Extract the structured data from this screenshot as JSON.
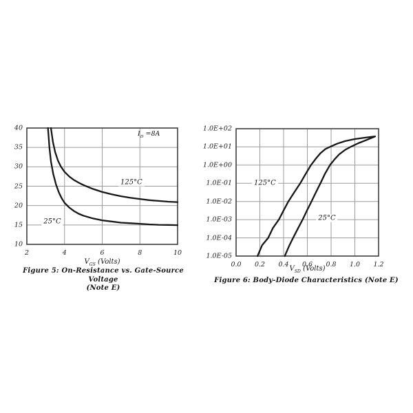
{
  "page": {
    "background": "#ffffff"
  },
  "chart_data": [
    {
      "id": "figure5",
      "type": "line",
      "title": "Figure 5: On-Resistance vs. Gate-Source Voltage",
      "title_line2": "(Note E)",
      "xlabel": {
        "symbol": "V",
        "subscript": "GS",
        "unit": " (Volts)"
      },
      "x_scale": "linear",
      "y_scale": "linear",
      "xlim": [
        2,
        10
      ],
      "ylim": [
        10,
        40
      ],
      "grid": true,
      "legend_position": "none",
      "x_ticks": [
        {
          "v": 2,
          "label": "2"
        },
        {
          "v": 4,
          "label": "4"
        },
        {
          "v": 6,
          "label": "6"
        },
        {
          "v": 8,
          "label": "8"
        },
        {
          "v": 10,
          "label": "10"
        }
      ],
      "y_ticks": [
        {
          "v": 40,
          "label": "40"
        },
        {
          "v": 35,
          "label": "35"
        },
        {
          "v": 30,
          "label": "30"
        },
        {
          "v": 25,
          "label": "25"
        },
        {
          "v": 20,
          "label": "20"
        },
        {
          "v": 15,
          "label": "15"
        },
        {
          "v": 10,
          "label": "10"
        }
      ],
      "annotation": {
        "symbol": "I",
        "subscript": "D",
        "value": " =8A"
      },
      "series": [
        {
          "name": "125°C",
          "label_at": [
            7.55,
            26.0
          ],
          "points": [
            [
              3.28,
              40
            ],
            [
              3.38,
              36.5
            ],
            [
              3.5,
              33.8
            ],
            [
              3.65,
              31.6
            ],
            [
              3.8,
              30.1
            ],
            [
              4.0,
              28.7
            ],
            [
              4.25,
              27.5
            ],
            [
              4.5,
              26.6
            ],
            [
              4.75,
              25.9
            ],
            [
              5.0,
              25.3
            ],
            [
              5.5,
              24.3
            ],
            [
              6.0,
              23.5
            ],
            [
              6.5,
              22.9
            ],
            [
              7.0,
              22.4
            ],
            [
              7.5,
              22.0
            ],
            [
              8.0,
              21.7
            ],
            [
              8.5,
              21.4
            ],
            [
              9.0,
              21.2
            ],
            [
              9.5,
              21.0
            ],
            [
              10.0,
              20.9
            ]
          ]
        },
        {
          "name": "25°C",
          "label_at": [
            3.35,
            15.9
          ],
          "points": [
            [
              3.12,
              40
            ],
            [
              3.2,
              35
            ],
            [
              3.28,
              31.4
            ],
            [
              3.4,
              28.2
            ],
            [
              3.55,
              25.4
            ],
            [
              3.7,
              23.4
            ],
            [
              3.85,
              21.9
            ],
            [
              4.0,
              20.7
            ],
            [
              4.25,
              19.5
            ],
            [
              4.5,
              18.6
            ],
            [
              4.75,
              17.9
            ],
            [
              5.0,
              17.4
            ],
            [
              5.5,
              16.7
            ],
            [
              6.0,
              16.2
            ],
            [
              6.5,
              15.9
            ],
            [
              7.0,
              15.6
            ],
            [
              7.5,
              15.45
            ],
            [
              8.0,
              15.3
            ],
            [
              8.5,
              15.15
            ],
            [
              9.0,
              15.05
            ],
            [
              9.5,
              15.0
            ],
            [
              10.0,
              14.95
            ]
          ]
        }
      ],
      "colors": {
        "curve": "#161616",
        "grid": "#9b9b9b",
        "frame": "#3c3c3c"
      }
    },
    {
      "id": "figure6",
      "type": "line",
      "title": "Figure 6: Body-Diode Characteristics (Note E)",
      "xlabel": {
        "symbol": "V",
        "subscript": "SD",
        "unit": " (Volts)"
      },
      "x_scale": "linear",
      "y_scale": "log",
      "xlim": [
        0,
        1.2
      ],
      "ylim": [
        1e-05,
        100
      ],
      "grid": true,
      "legend_position": "none",
      "x_ticks": [
        {
          "v": 0.0,
          "label": "0.0"
        },
        {
          "v": 0.2,
          "label": "0.2"
        },
        {
          "v": 0.4,
          "label": "0.4"
        },
        {
          "v": 0.6,
          "label": "0.6"
        },
        {
          "v": 0.8,
          "label": "0.8"
        },
        {
          "v": 1.0,
          "label": "1.0"
        },
        {
          "v": 1.2,
          "label": "1.2"
        }
      ],
      "y_ticks": [
        {
          "v": 100,
          "label": "1.0E+02"
        },
        {
          "v": 10,
          "label": "1.0E+01"
        },
        {
          "v": 1,
          "label": "1.0E+00"
        },
        {
          "v": 0.1,
          "label": "1.0E-01"
        },
        {
          "v": 0.01,
          "label": "1.0E-02"
        },
        {
          "v": 0.001,
          "label": "1.0E-03"
        },
        {
          "v": 0.0001,
          "label": "1.0E-04"
        },
        {
          "v": 1e-05,
          "label": "1.0E-05"
        }
      ],
      "series": [
        {
          "name": "125°C",
          "label_at": [
            0.243,
            0.102
          ],
          "points": [
            [
              0.18,
              1e-05
            ],
            [
              0.22,
              4e-05
            ],
            [
              0.27,
              0.0001
            ],
            [
              0.31,
              0.00035
            ],
            [
              0.36,
              0.001
            ],
            [
              0.4,
              0.0032
            ],
            [
              0.44,
              0.01
            ],
            [
              0.49,
              0.032
            ],
            [
              0.54,
              0.1
            ],
            [
              0.585,
              0.32
            ],
            [
              0.63,
              1
            ],
            [
              0.67,
              2.2
            ],
            [
              0.71,
              4.5
            ],
            [
              0.75,
              7.5
            ],
            [
              0.79,
              10
            ],
            [
              0.85,
              15
            ],
            [
              0.92,
              21
            ],
            [
              1.0,
              27
            ],
            [
              1.08,
              32
            ],
            [
              1.17,
              38
            ]
          ]
        },
        {
          "name": "25°C",
          "label_at": [
            0.765,
            0.0012
          ],
          "points": [
            [
              0.41,
              1e-05
            ],
            [
              0.45,
              4e-05
            ],
            [
              0.48,
              0.0001
            ],
            [
              0.52,
              0.00032
            ],
            [
              0.56,
              0.001
            ],
            [
              0.6,
              0.0035
            ],
            [
              0.635,
              0.01
            ],
            [
              0.67,
              0.03
            ],
            [
              0.71,
              0.1
            ],
            [
              0.75,
              0.35
            ],
            [
              0.79,
              1
            ],
            [
              0.83,
              2.1
            ],
            [
              0.87,
              4
            ],
            [
              0.92,
              7
            ],
            [
              0.97,
              10.5
            ],
            [
              1.03,
              16
            ],
            [
              1.09,
              23
            ],
            [
              1.14,
              31
            ],
            [
              1.17,
              37.5
            ]
          ]
        }
      ],
      "colors": {
        "curve": "#161616",
        "grid": "#9b9b9b",
        "frame": "#3c3c3c"
      }
    }
  ]
}
